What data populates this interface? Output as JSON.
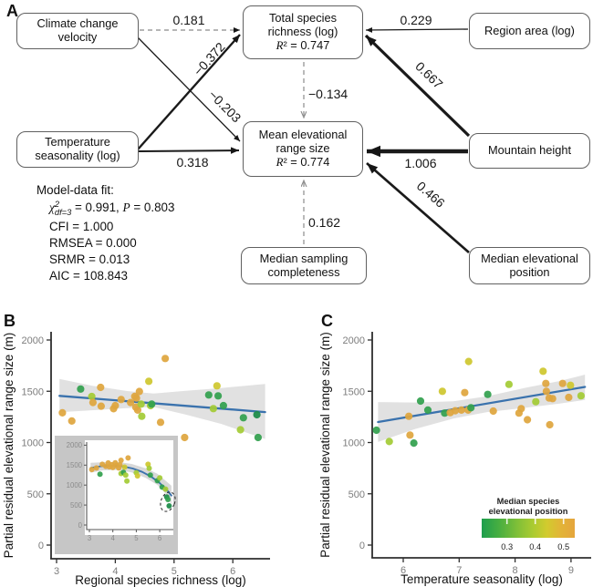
{
  "panel_labels": {
    "a": "A",
    "b": "B",
    "c": "C"
  },
  "panelA": {
    "boxes": [
      {
        "id": "ccv",
        "lines": [
          "Climate change",
          "velocity"
        ]
      },
      {
        "id": "tsr",
        "lines": [
          "Total species",
          "richness (log)"
        ],
        "r2": "R² = 0.747"
      },
      {
        "id": "ra",
        "lines": [
          "Region area (log)"
        ]
      },
      {
        "id": "ts",
        "lines": [
          "Temperature",
          "seasonality (log)"
        ]
      },
      {
        "id": "mer",
        "lines": [
          "Mean elevational",
          "range size"
        ],
        "r2": "R² = 0.774"
      },
      {
        "id": "mh",
        "lines": [
          "Mountain height"
        ]
      },
      {
        "id": "msc",
        "lines": [
          "Median sampling",
          "completeness"
        ]
      },
      {
        "id": "mep",
        "lines": [
          "Median elevational",
          "position"
        ]
      }
    ],
    "paths": [
      {
        "id": "ccv-tsr",
        "coef": "0.181",
        "dashed": true
      },
      {
        "id": "ccv-mer",
        "coef": "−0.203",
        "dashed": false
      },
      {
        "id": "ts-tsr",
        "coef": "−0.372",
        "dashed": false
      },
      {
        "id": "ts-mer",
        "coef": "0.318",
        "dashed": false
      },
      {
        "id": "ra-tsr",
        "coef": "0.229",
        "dashed": false
      },
      {
        "id": "mh-tsr",
        "coef": "0.667",
        "dashed": false
      },
      {
        "id": "mh-mer",
        "coef": "1.006",
        "dashed": false
      },
      {
        "id": "mep-mer",
        "coef": "0.466",
        "dashed": false
      },
      {
        "id": "tsr-mer",
        "coef": "−0.134",
        "dashed": true
      },
      {
        "id": "msc-mer",
        "coef": "0.162",
        "dashed": true
      }
    ],
    "fit": {
      "title": "Model-data fit:",
      "chi_sym": "χ",
      "chi_sup": "2",
      "chi_sub": "df=3",
      "chi_eq": " = 0.991, ",
      "p_sym": "P",
      "p_eq": " = 0.803",
      "lines": [
        "CFI = 1.000",
        "RMSEA = 0.000",
        "SRMR = 0.013",
        "AIC = 108.843"
      ]
    }
  },
  "colors": {
    "regression_blue": "#3a72ad",
    "ci_band_gray": "#dcdcdc",
    "axis_dark": "#2e2e2e",
    "tick_gray": "#7d7d7d",
    "palette": {
      "g": "#33a04f",
      "dg": "#1c8b48",
      "lg": "#a4cb36",
      "y": "#cfc72f",
      "o": "#dfa63e"
    },
    "legend_gradient": [
      "#1e9e4e",
      "#46ae41",
      "#7fbf38",
      "#aacb31",
      "#d2cb2e",
      "#e2b437",
      "#e5a53d"
    ]
  },
  "chart_data": [
    {
      "id": "B",
      "type": "scatter",
      "xlabel": "Regional species richness (log)",
      "ylabel": "Partial residual elevational range size (m)",
      "xticks": [
        3,
        4,
        5,
        6
      ],
      "yticks": [
        0,
        500,
        1000,
        1500,
        2000
      ],
      "xlim": [
        2.9,
        6.62
      ],
      "ylim": [
        -140,
        2100
      ],
      "regression": [
        [
          3.05,
          1455
        ],
        [
          6.55,
          1297
        ]
      ],
      "ci_band": [
        [
          3.05,
          1620,
          1295
        ],
        [
          3.6,
          1555,
          1315
        ],
        [
          4.2,
          1502,
          1335
        ],
        [
          4.65,
          1478,
          1347
        ],
        [
          5.2,
          1505,
          1272
        ],
        [
          5.8,
          1532,
          1182
        ],
        [
          6.55,
          1572,
          1035
        ]
      ],
      "points": [
        [
          3.1,
          1290,
          "o"
        ],
        [
          3.26,
          1210,
          "o"
        ],
        [
          3.41,
          1522,
          "g"
        ],
        [
          3.6,
          1449,
          "lg"
        ],
        [
          3.62,
          1390,
          "o"
        ],
        [
          3.75,
          1538,
          "o"
        ],
        [
          3.76,
          1355,
          "o"
        ],
        [
          3.97,
          1330,
          "o"
        ],
        [
          4.0,
          1360,
          "o"
        ],
        [
          4.1,
          1420,
          "o"
        ],
        [
          4.26,
          1390,
          "o"
        ],
        [
          4.33,
          1450,
          "o"
        ],
        [
          4.36,
          1434,
          "o"
        ],
        [
          4.35,
          1345,
          "o"
        ],
        [
          4.38,
          1316,
          "o"
        ],
        [
          4.41,
          1498,
          "o"
        ],
        [
          4.44,
          1375,
          "lg"
        ],
        [
          4.45,
          1256,
          "lg"
        ],
        [
          4.57,
          1597,
          "y"
        ],
        [
          4.6,
          1360,
          "lg"
        ],
        [
          4.62,
          1375,
          "g"
        ],
        [
          4.77,
          1197,
          "o"
        ],
        [
          4.85,
          1820,
          "o"
        ],
        [
          5.18,
          1049,
          "o"
        ],
        [
          5.59,
          1464,
          "g"
        ],
        [
          5.67,
          1331,
          "lg"
        ],
        [
          5.73,
          1553,
          "y"
        ],
        [
          5.75,
          1455,
          "g"
        ],
        [
          5.84,
          1360,
          "g"
        ],
        [
          6.13,
          1124,
          "lg"
        ],
        [
          6.18,
          1242,
          "g"
        ],
        [
          6.41,
          1271,
          "dg"
        ],
        [
          6.43,
          1049,
          "g"
        ]
      ],
      "inset": {
        "xticks": [
          3,
          4,
          5,
          6
        ],
        "yticks": [
          0,
          500,
          1000,
          1500,
          2000
        ],
        "curve": [
          [
            3.05,
            1430
          ],
          [
            3.5,
            1472
          ],
          [
            3.95,
            1488
          ],
          [
            4.4,
            1470
          ],
          [
            4.85,
            1415
          ],
          [
            5.25,
            1330
          ],
          [
            5.65,
            1205
          ],
          [
            6.0,
            1050
          ],
          [
            6.3,
            880
          ],
          [
            6.5,
            740
          ]
        ],
        "ci_band": [
          [
            3.05,
            1560,
            1310
          ],
          [
            3.6,
            1572,
            1372
          ],
          [
            4.2,
            1580,
            1380
          ],
          [
            4.8,
            1530,
            1320
          ],
          [
            5.4,
            1420,
            1180
          ],
          [
            5.9,
            1285,
            1005
          ],
          [
            6.3,
            1085,
            755
          ],
          [
            6.5,
            985,
            520
          ]
        ],
        "points": [
          [
            3.1,
            1390,
            "o"
          ],
          [
            3.3,
            1430,
            "o"
          ],
          [
            3.45,
            1275,
            "g"
          ],
          [
            3.55,
            1520,
            "o"
          ],
          [
            3.7,
            1470,
            "o"
          ],
          [
            3.8,
            1555,
            "o"
          ],
          [
            3.85,
            1460,
            "o"
          ],
          [
            3.95,
            1510,
            "o"
          ],
          [
            4.0,
            1440,
            "o"
          ],
          [
            4.1,
            1560,
            "o"
          ],
          [
            4.15,
            1490,
            "o"
          ],
          [
            4.25,
            1430,
            "o"
          ],
          [
            4.3,
            1510,
            "o"
          ],
          [
            4.35,
            1620,
            "o"
          ],
          [
            4.35,
            1290,
            "lg"
          ],
          [
            4.45,
            1320,
            "g"
          ],
          [
            4.5,
            1450,
            "y"
          ],
          [
            4.55,
            1250,
            "lg"
          ],
          [
            4.6,
            1100,
            "lg"
          ],
          [
            4.65,
            1680,
            "o"
          ],
          [
            5.0,
            1310,
            "lg"
          ],
          [
            5.05,
            1230,
            "y"
          ],
          [
            5.5,
            1520,
            "y"
          ],
          [
            5.55,
            1420,
            "lg"
          ],
          [
            5.6,
            1250,
            "g"
          ],
          [
            5.9,
            1110,
            "g"
          ],
          [
            6.0,
            1180,
            "lg"
          ],
          [
            6.1,
            950,
            "g"
          ],
          [
            6.25,
            900,
            "lg"
          ],
          [
            6.3,
            700,
            "dg"
          ],
          [
            6.35,
            640,
            "g"
          ],
          [
            6.4,
            480,
            "dg"
          ]
        ],
        "highlight_ellipse": true
      }
    },
    {
      "id": "C",
      "type": "scatter",
      "xlabel": "Temperature seasonality (log)",
      "ylabel": "Partial residual elevational range size (m)",
      "xticks": [
        6,
        7,
        8,
        9
      ],
      "yticks": [
        0,
        500,
        1000,
        1500,
        2000
      ],
      "xlim": [
        5.45,
        9.4
      ],
      "ylim": [
        -140,
        2100
      ],
      "regression": [
        [
          5.55,
          1200
        ],
        [
          9.25,
          1542
        ]
      ],
      "ci_band": [
        [
          5.55,
          1395,
          1005
        ],
        [
          6.2,
          1390,
          1130
        ],
        [
          6.9,
          1402,
          1235
        ],
        [
          7.5,
          1452,
          1297
        ],
        [
          8.2,
          1535,
          1340
        ],
        [
          8.8,
          1600,
          1380
        ],
        [
          9.25,
          1662,
          1415
        ]
      ],
      "points": [
        [
          5.52,
          1120,
          "g"
        ],
        [
          5.75,
          1010,
          "lg"
        ],
        [
          6.1,
          1256,
          "o"
        ],
        [
          6.12,
          1073,
          "o"
        ],
        [
          6.19,
          995,
          "g"
        ],
        [
          6.31,
          1404,
          "g"
        ],
        [
          6.44,
          1316,
          "g"
        ],
        [
          6.7,
          1500,
          "y"
        ],
        [
          6.74,
          1287,
          "g"
        ],
        [
          6.84,
          1292,
          "o"
        ],
        [
          6.93,
          1310,
          "o"
        ],
        [
          7.04,
          1316,
          "o"
        ],
        [
          7.1,
          1487,
          "o"
        ],
        [
          7.16,
          1316,
          "o"
        ],
        [
          7.17,
          1790,
          "y"
        ],
        [
          7.21,
          1340,
          "g"
        ],
        [
          7.51,
          1469,
          "g"
        ],
        [
          7.61,
          1307,
          "o"
        ],
        [
          7.89,
          1567,
          "lg"
        ],
        [
          8.07,
          1287,
          "o"
        ],
        [
          8.11,
          1331,
          "o"
        ],
        [
          8.22,
          1222,
          "o"
        ],
        [
          8.37,
          1398,
          "lg"
        ],
        [
          8.5,
          1695,
          "y"
        ],
        [
          8.55,
          1576,
          "o"
        ],
        [
          8.56,
          1500,
          "o"
        ],
        [
          8.61,
          1434,
          "o"
        ],
        [
          8.62,
          1173,
          "o"
        ],
        [
          8.67,
          1428,
          "o"
        ],
        [
          8.85,
          1576,
          "o"
        ],
        [
          8.96,
          1440,
          "o"
        ],
        [
          8.99,
          1558,
          "y"
        ],
        [
          9.18,
          1456,
          "lg"
        ]
      ],
      "legend": {
        "title_lines": [
          "Median species",
          "elevational position"
        ],
        "ticks": [
          "0.3",
          "0.4",
          "0.5"
        ]
      }
    }
  ]
}
